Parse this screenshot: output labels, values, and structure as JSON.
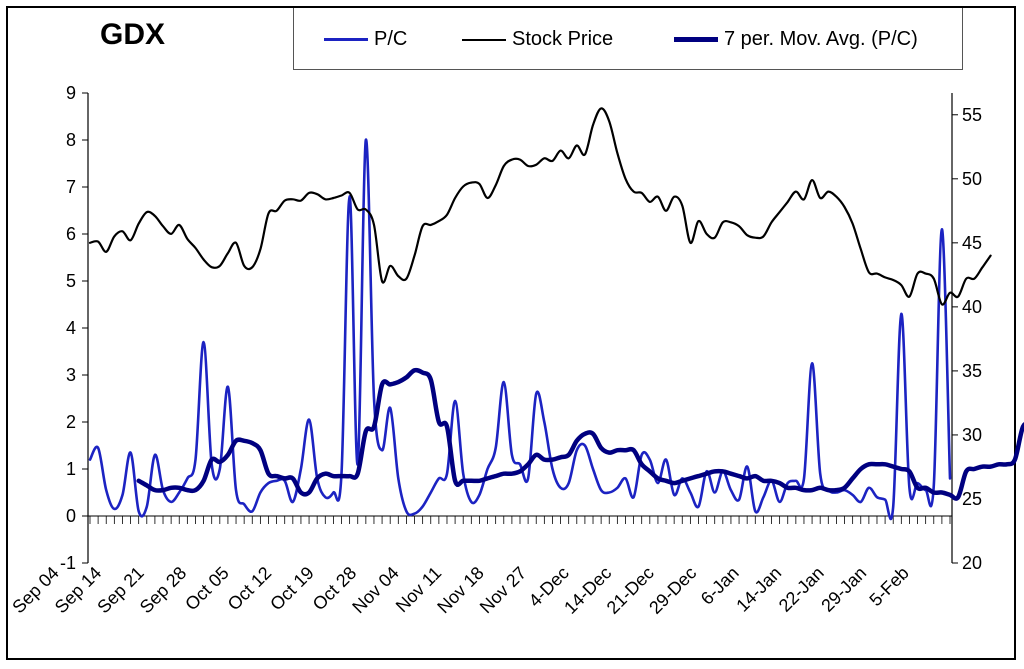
{
  "chart_data": {
    "type": "line",
    "title": "GDX",
    "x_tick_labels": [
      "Sep 04",
      "Sep 14",
      "Sep 21",
      "Sep 28",
      "Oct 05",
      "Oct 12",
      "Oct 19",
      "Oct 28",
      "Nov 04",
      "Nov 11",
      "Nov 18",
      "Nov 27",
      "4-Dec",
      "14-Dec",
      "21-Dec",
      "29-Dec",
      "6-Jan",
      "14-Jan",
      "22-Jan",
      "29-Jan",
      "5-Feb"
    ],
    "y_left": {
      "ylim": [
        -1,
        9
      ],
      "ticks": [
        -1,
        0,
        1,
        2,
        3,
        4,
        5,
        6,
        7,
        8,
        9
      ]
    },
    "y_right": {
      "ylim": [
        20,
        56.7
      ],
      "ticks": [
        20,
        25,
        30,
        35,
        40,
        45,
        50,
        55
      ]
    },
    "legend_position": "top",
    "grid": false,
    "series": [
      {
        "name": "P/C",
        "axis": "left",
        "color": "#1c23c2",
        "values": [
          1.2,
          1.45,
          0.55,
          0.15,
          0.45,
          1.35,
          0.1,
          0.2,
          1.3,
          0.55,
          0.3,
          0.5,
          0.8,
          1.2,
          3.7,
          1.1,
          1.0,
          2.75,
          0.55,
          0.25,
          0.1,
          0.5,
          0.7,
          0.75,
          0.75,
          0.3,
          1.0,
          2.05,
          0.8,
          0.4,
          0.5,
          0.9,
          6.8,
          1.1,
          8.0,
          2.5,
          1.4,
          2.3,
          0.8,
          0.1,
          0.05,
          0.2,
          0.5,
          0.8,
          0.9,
          2.45,
          0.9,
          0.3,
          0.45,
          1.0,
          1.45,
          2.85,
          1.3,
          1.1,
          0.8,
          2.6,
          2.0,
          1.0,
          0.6,
          0.7,
          1.4,
          1.5,
          1.0,
          0.55,
          0.5,
          0.6,
          0.8,
          0.4,
          1.3,
          1.2,
          0.7,
          1.2,
          0.45,
          0.8,
          0.5,
          0.2,
          0.95,
          0.5,
          0.95,
          0.55,
          0.35,
          1.05,
          0.1,
          0.4,
          0.75,
          0.3,
          0.7,
          0.75,
          0.8,
          3.25,
          0.9,
          0.55,
          0.5,
          0.55,
          0.45,
          0.3,
          0.6,
          0.4,
          0.35,
          0.2,
          4.3,
          0.6,
          0.7,
          0.55,
          0.65,
          6.1,
          0.8
        ]
      },
      {
        "name": "Stock Price",
        "axis": "right",
        "color": "#000000",
        "values": [
          45.0,
          45.1,
          44.3,
          45.5,
          45.9,
          45.2,
          46.5,
          47.4,
          47.1,
          46.3,
          45.7,
          46.4,
          45.3,
          44.6,
          43.7,
          43.1,
          43.2,
          44.2,
          45.0,
          43.2,
          43.1,
          44.5,
          47.3,
          47.5,
          48.3,
          48.4,
          48.3,
          48.9,
          48.8,
          48.4,
          48.5,
          48.7,
          48.9,
          47.6,
          47.6,
          46.4,
          42.0,
          43.2,
          42.4,
          42.2,
          44.0,
          46.3,
          46.4,
          46.7,
          47.2,
          48.5,
          49.4,
          49.7,
          49.6,
          48.5,
          49.5,
          51.0,
          51.5,
          51.5,
          51.0,
          51.1,
          51.6,
          51.4,
          52.2,
          51.6,
          52.6,
          51.9,
          54.2,
          55.5,
          54.5,
          52.0,
          50.0,
          49.0,
          48.9,
          48.2,
          48.6,
          47.5,
          48.6,
          47.9,
          45.0,
          46.7,
          45.7,
          45.4,
          46.6,
          46.6,
          46.3,
          45.6,
          45.4,
          45.5,
          46.6,
          47.4,
          48.2,
          49.0,
          48.4,
          49.9,
          48.5,
          49.0,
          48.6,
          47.8,
          46.5,
          44.5,
          42.7,
          42.6,
          42.3,
          42.1,
          41.7,
          40.8,
          42.6,
          42.6,
          42.2,
          40.2,
          41.1,
          40.8,
          42.2,
          42.2,
          43.1,
          44.0
        ]
      },
      {
        "name": "7 per. Mov. Avg. (P/C)",
        "axis": "left",
        "color": "#000080",
        "start_index": 6,
        "values": [
          0.75,
          0.65,
          0.55,
          0.55,
          0.6,
          0.6,
          0.55,
          0.55,
          0.75,
          1.2,
          1.15,
          1.3,
          1.6,
          1.6,
          1.55,
          1.4,
          0.9,
          0.85,
          0.8,
          0.8,
          0.5,
          0.5,
          0.8,
          0.9,
          0.85,
          0.85,
          0.85,
          0.9,
          1.8,
          1.9,
          2.8,
          2.8,
          2.85,
          2.95,
          3.1,
          3.05,
          2.9,
          2.0,
          1.9,
          0.75,
          0.75,
          0.75,
          0.75,
          0.8,
          0.85,
          0.9,
          0.9,
          0.95,
          1.1,
          1.3,
          1.2,
          1.2,
          1.25,
          1.3,
          1.6,
          1.75,
          1.75,
          1.45,
          1.35,
          1.4,
          1.4,
          1.4,
          1.1,
          0.95,
          0.8,
          0.75,
          0.7,
          0.75,
          0.8,
          0.85,
          0.9,
          0.95,
          0.95,
          0.9,
          0.85,
          0.8,
          0.85,
          0.75,
          0.75,
          0.7,
          0.6,
          0.6,
          0.55,
          0.55,
          0.6,
          0.55,
          0.55,
          0.6,
          0.8,
          1.0,
          1.1,
          1.1,
          1.1,
          1.05,
          1.0,
          0.95,
          0.6,
          0.6,
          0.5,
          0.5,
          0.45,
          0.4,
          0.95,
          1.0,
          1.05,
          1.05,
          1.1,
          1.1,
          1.2,
          1.9,
          1.95
        ]
      }
    ]
  }
}
